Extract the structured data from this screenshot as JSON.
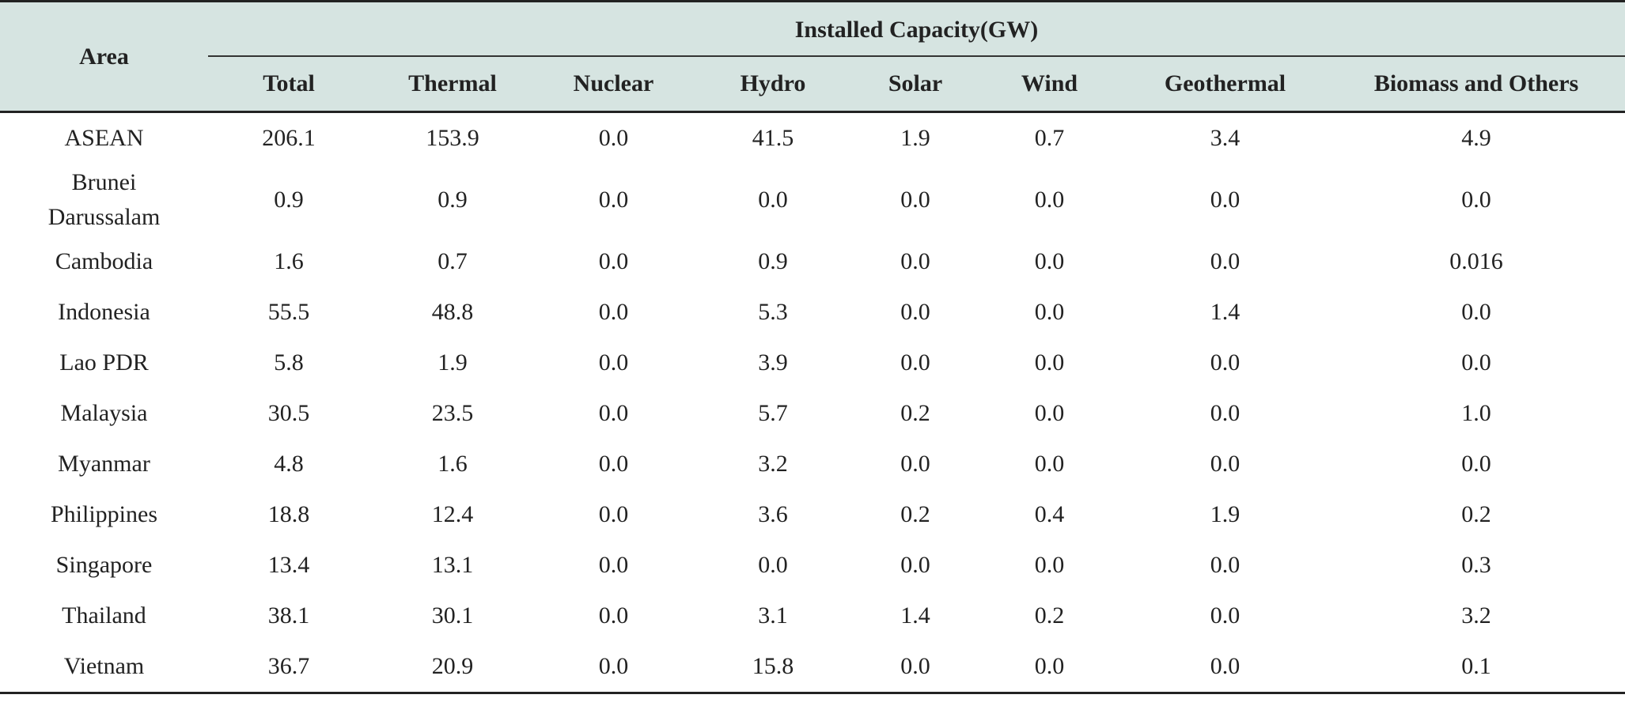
{
  "header": {
    "area_label": "Area",
    "group_label": "Installed Capacity(GW)",
    "columns": [
      "Total",
      "Thermal",
      "Nuclear",
      "Hydro",
      "Solar",
      "Wind",
      "Geothermal",
      "Biomass and Others"
    ]
  },
  "rows": [
    {
      "area": "ASEAN",
      "values": [
        "206.1",
        "153.9",
        "0.0",
        "41.5",
        "1.9",
        "0.7",
        "3.4",
        "4.9"
      ]
    },
    {
      "area": "Brunei Darussalam",
      "values": [
        "0.9",
        "0.9",
        "0.0",
        "0.0",
        "0.0",
        "0.0",
        "0.0",
        "0.0"
      ]
    },
    {
      "area": "Cambodia",
      "values": [
        "1.6",
        "0.7",
        "0.0",
        "0.9",
        "0.0",
        "0.0",
        "0.0",
        "0.016"
      ]
    },
    {
      "area": "Indonesia",
      "values": [
        "55.5",
        "48.8",
        "0.0",
        "5.3",
        "0.0",
        "0.0",
        "1.4",
        "0.0"
      ]
    },
    {
      "area": "Lao PDR",
      "values": [
        "5.8",
        "1.9",
        "0.0",
        "3.9",
        "0.0",
        "0.0",
        "0.0",
        "0.0"
      ]
    },
    {
      "area": "Malaysia",
      "values": [
        "30.5",
        "23.5",
        "0.0",
        "5.7",
        "0.2",
        "0.0",
        "0.0",
        "1.0"
      ]
    },
    {
      "area": "Myanmar",
      "values": [
        "4.8",
        "1.6",
        "0.0",
        "3.2",
        "0.0",
        "0.0",
        "0.0",
        "0.0"
      ]
    },
    {
      "area": "Philippines",
      "values": [
        "18.8",
        "12.4",
        "0.0",
        "3.6",
        "0.2",
        "0.4",
        "1.9",
        "0.2"
      ]
    },
    {
      "area": "Singapore",
      "values": [
        "13.4",
        "13.1",
        "0.0",
        "0.0",
        "0.0",
        "0.0",
        "0.0",
        "0.3"
      ]
    },
    {
      "area": "Thailand",
      "values": [
        "38.1",
        "30.1",
        "0.0",
        "3.1",
        "1.4",
        "0.2",
        "0.0",
        "3.2"
      ]
    },
    {
      "area": "Vietnam",
      "values": [
        "36.7",
        "20.9",
        "0.0",
        "15.8",
        "0.0",
        "0.0",
        "0.0",
        "0.1"
      ]
    }
  ]
}
